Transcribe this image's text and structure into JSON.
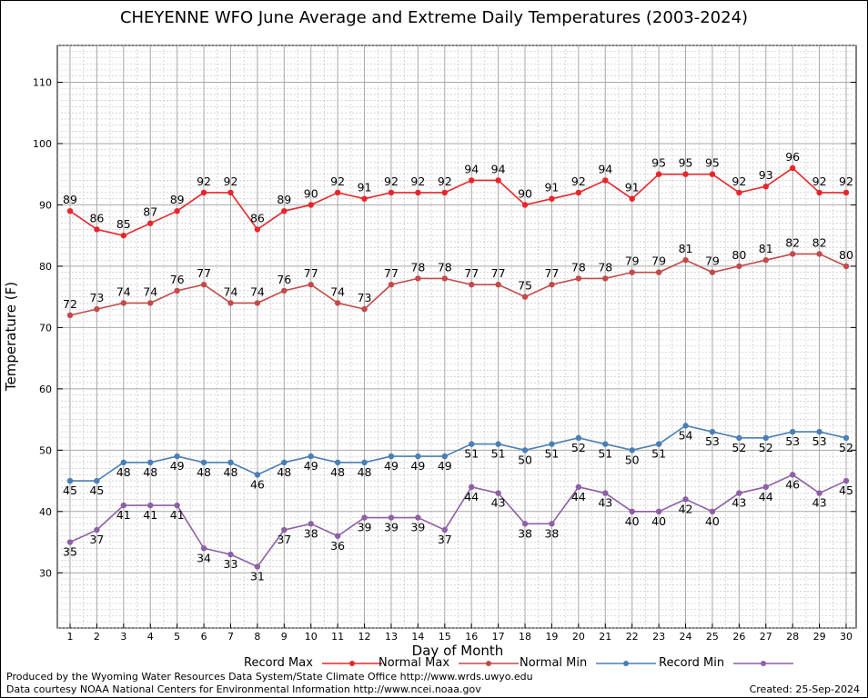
{
  "chart_data": {
    "type": "line",
    "title": "CHEYENNE WFO June Average and Extreme Daily Temperatures (2003-2024)",
    "xlabel": "Day of Month",
    "ylabel": "Temperature (F)",
    "xlim": [
      1,
      30
    ],
    "ylim": [
      21,
      116
    ],
    "y_ticks": [
      30,
      40,
      50,
      60,
      70,
      80,
      90,
      100,
      110
    ],
    "categories": [
      "1",
      "2",
      "3",
      "4",
      "5",
      "6",
      "7",
      "8",
      "9",
      "10",
      "11",
      "12",
      "13",
      "14",
      "15",
      "16",
      "17",
      "18",
      "19",
      "20",
      "21",
      "22",
      "23",
      "24",
      "25",
      "26",
      "27",
      "28",
      "29",
      "30"
    ],
    "grid": true,
    "legend_position": "bottom",
    "series": [
      {
        "name": "Record Max",
        "color": "#e8262a",
        "label_pos": "above",
        "values": [
          89,
          86,
          85,
          87,
          89,
          92,
          92,
          86,
          89,
          90,
          92,
          91,
          92,
          92,
          92,
          94,
          94,
          90,
          91,
          92,
          94,
          91,
          95,
          95,
          95,
          92,
          93,
          96,
          92,
          92
        ]
      },
      {
        "name": "Normal Max",
        "color": "#c24a4a",
        "label_pos": "above",
        "values": [
          72,
          73,
          74,
          74,
          76,
          77,
          74,
          74,
          76,
          77,
          74,
          73,
          77,
          78,
          78,
          77,
          77,
          75,
          77,
          78,
          78,
          79,
          79,
          81,
          79,
          80,
          81,
          82,
          82,
          80
        ]
      },
      {
        "name": "Normal Min",
        "color": "#4a7fb5",
        "label_pos": "below",
        "values": [
          45,
          45,
          48,
          48,
          49,
          48,
          48,
          46,
          48,
          49,
          48,
          48,
          49,
          49,
          49,
          51,
          51,
          50,
          51,
          52,
          51,
          50,
          51,
          54,
          53,
          52,
          52,
          53,
          53,
          52
        ]
      },
      {
        "name": "Record Min",
        "color": "#8e5fa6",
        "label_pos": "below",
        "values": [
          35,
          37,
          41,
          41,
          41,
          34,
          33,
          31,
          37,
          38,
          36,
          39,
          39,
          39,
          37,
          44,
          43,
          38,
          38,
          44,
          43,
          40,
          40,
          42,
          40,
          43,
          44,
          46,
          43,
          45
        ]
      }
    ]
  },
  "footer": {
    "line1": "Produced by the Wyoming Water Resources Data System/State Climate Office http://www.wrds.uwyo.edu",
    "line2": "Data courtesy NOAA National Centers for Environmental Information http://www.ncei.noaa.gov",
    "created": "Created:  25-Sep-2024"
  }
}
